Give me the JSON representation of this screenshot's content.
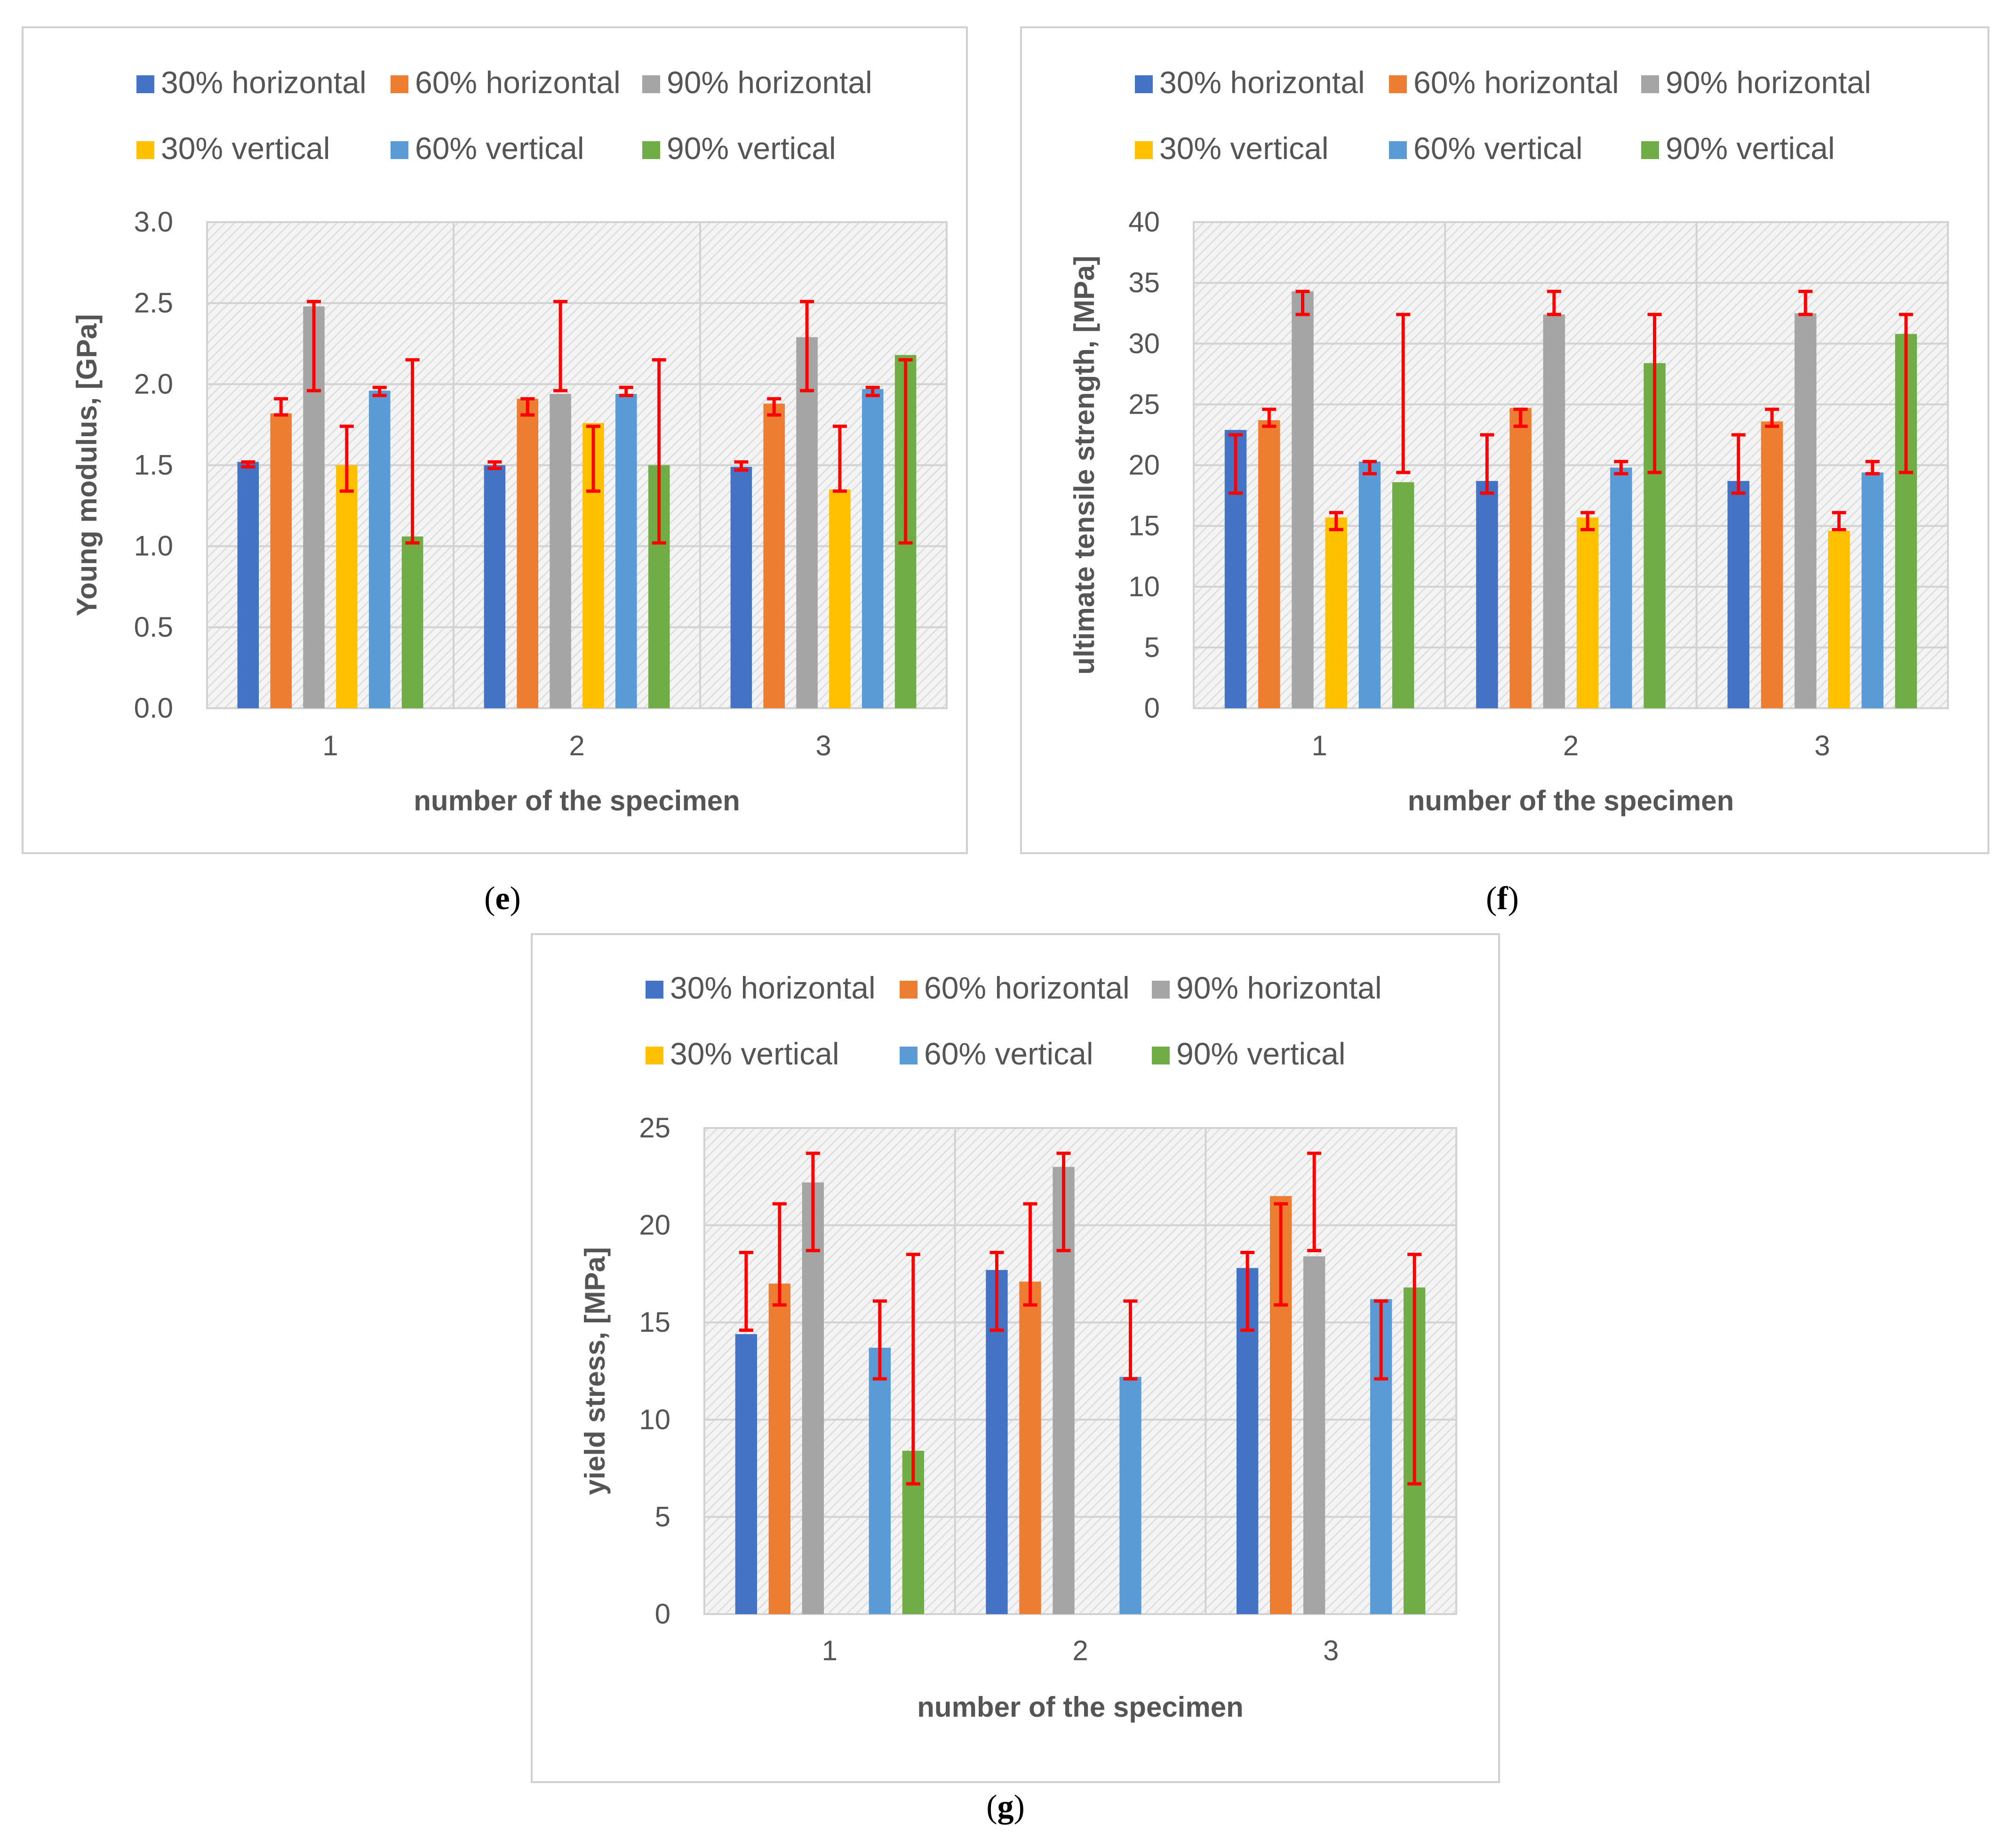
{
  "colors": {
    "30% horizontal": "#4472c4",
    "60% horizontal": "#ed7d31",
    "90% horizontal": "#a5a5a5",
    "30% vertical": "#ffc000",
    "60% vertical": "#5b9bd5",
    "90% vertical": "#70ad47",
    "error_bar": "#ff0000"
  },
  "chart_data": [
    {
      "id": "e",
      "type": "bar",
      "panel_label": "e",
      "xlabel": "number of the specimen",
      "ylabel": "Young modulus, [GPa]",
      "ylim": [
        0,
        3
      ],
      "ytick_step": 0.5,
      "ytick_decimals": 1,
      "categories": [
        "1",
        "2",
        "3"
      ],
      "legend": [
        "30% horizontal",
        "60% horizontal",
        "90% horizontal",
        "30% vertical",
        "60% vertical",
        "90% vertical"
      ],
      "series": [
        {
          "name": "30% horizontal",
          "values": [
            1.52,
            1.5,
            1.49
          ],
          "err_low": [
            1.49,
            1.48,
            1.47
          ],
          "err_high": [
            1.52,
            1.52,
            1.52
          ]
        },
        {
          "name": "60% horizontal",
          "values": [
            1.82,
            1.91,
            1.88
          ],
          "err_low": [
            1.81,
            1.81,
            1.81
          ],
          "err_high": [
            1.91,
            1.91,
            1.91
          ]
        },
        {
          "name": "90% horizontal",
          "values": [
            2.48,
            1.94,
            2.29
          ],
          "err_low": [
            1.96,
            1.96,
            1.96
          ],
          "err_high": [
            2.51,
            2.51,
            2.51
          ]
        },
        {
          "name": "30% vertical",
          "values": [
            1.5,
            1.76,
            1.35
          ],
          "err_low": [
            1.34,
            1.34,
            1.34
          ],
          "err_high": [
            1.74,
            1.74,
            1.74
          ]
        },
        {
          "name": "60% vertical",
          "values": [
            1.96,
            1.94,
            1.97
          ],
          "err_low": [
            1.93,
            1.93,
            1.93
          ],
          "err_high": [
            1.98,
            1.98,
            1.98
          ]
        },
        {
          "name": "90% vertical",
          "values": [
            1.06,
            1.5,
            2.18
          ],
          "err_low": [
            1.02,
            1.02,
            1.02
          ],
          "err_high": [
            2.15,
            2.15,
            2.15
          ]
        }
      ]
    },
    {
      "id": "f",
      "type": "bar",
      "panel_label": "f",
      "xlabel": "number of the specimen",
      "ylabel": "ultimate tensile strength, [MPa]",
      "ylim": [
        0,
        40
      ],
      "ytick_step": 5,
      "ytick_decimals": 0,
      "categories": [
        "1",
        "2",
        "3"
      ],
      "legend": [
        "30% horizontal",
        "60% horizontal",
        "90% horizontal",
        "30% vertical",
        "60% vertical",
        "90% vertical"
      ],
      "series": [
        {
          "name": "30% horizontal",
          "values": [
            22.9,
            18.7,
            18.7
          ],
          "err_low": [
            17.7,
            17.7,
            17.7
          ],
          "err_high": [
            22.5,
            22.5,
            22.5
          ]
        },
        {
          "name": "60% horizontal",
          "values": [
            23.7,
            24.7,
            23.6
          ],
          "err_low": [
            23.2,
            23.2,
            23.2
          ],
          "err_high": [
            24.6,
            24.6,
            24.6
          ]
        },
        {
          "name": "90% horizontal",
          "values": [
            34.3,
            32.4,
            32.5
          ],
          "err_low": [
            32.4,
            32.4,
            32.4
          ],
          "err_high": [
            34.3,
            34.3,
            34.3
          ]
        },
        {
          "name": "30% vertical",
          "values": [
            15.7,
            15.7,
            14.6
          ],
          "err_low": [
            14.7,
            14.7,
            14.7
          ],
          "err_high": [
            16.1,
            16.1,
            16.1
          ]
        },
        {
          "name": "60% vertical",
          "values": [
            20.3,
            19.8,
            19.4
          ],
          "err_low": [
            19.3,
            19.3,
            19.3
          ],
          "err_high": [
            20.3,
            20.3,
            20.3
          ]
        },
        {
          "name": "90% vertical",
          "values": [
            18.6,
            28.4,
            30.8
          ],
          "err_low": [
            19.4,
            19.4,
            19.4
          ],
          "err_high": [
            32.4,
            32.4,
            32.4
          ]
        }
      ]
    },
    {
      "id": "g",
      "type": "bar",
      "panel_label": "g",
      "xlabel": "number of the specimen",
      "ylabel": "yield stress, [MPa]",
      "ylim": [
        0,
        25
      ],
      "ytick_step": 5,
      "ytick_decimals": 0,
      "categories": [
        "1",
        "2",
        "3"
      ],
      "legend": [
        "30% horizontal",
        "60% horizontal",
        "90% horizontal",
        "30% vertical",
        "60% vertical",
        "90% vertical"
      ],
      "series": [
        {
          "name": "30% horizontal",
          "values": [
            14.4,
            17.7,
            17.8
          ],
          "err_low": [
            14.6,
            14.6,
            14.6
          ],
          "err_high": [
            18.6,
            18.6,
            18.6
          ]
        },
        {
          "name": "60% horizontal",
          "values": [
            17.0,
            17.1,
            21.5
          ],
          "err_low": [
            15.9,
            15.9,
            15.9
          ],
          "err_high": [
            21.1,
            21.1,
            21.1
          ]
        },
        {
          "name": "90% horizontal",
          "values": [
            22.2,
            23.0,
            18.4
          ],
          "err_low": [
            18.7,
            18.7,
            18.7
          ],
          "err_high": [
            23.7,
            23.7,
            23.7
          ]
        },
        {
          "name": "30% vertical",
          "values": [
            0,
            0,
            0
          ],
          "err_low": [],
          "err_high": []
        },
        {
          "name": "60% vertical",
          "values": [
            13.7,
            12.2,
            16.2
          ],
          "err_low": [
            12.1,
            12.1,
            12.1
          ],
          "err_high": [
            16.1,
            16.1,
            16.1
          ]
        },
        {
          "name": "90% vertical",
          "values": [
            8.4,
            0,
            16.8
          ],
          "err_low": [
            6.7,
            null,
            6.7
          ],
          "err_high": [
            18.5,
            null,
            18.5
          ]
        }
      ]
    }
  ]
}
